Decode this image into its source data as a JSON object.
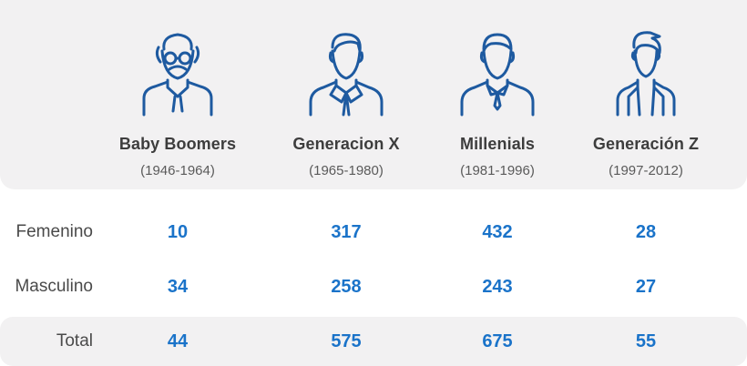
{
  "generations": [
    {
      "name": "Baby Boomers",
      "years": "(1946-1964)",
      "icon": "elderly-man-icon"
    },
    {
      "name": "Generacion X",
      "years": "(1965-1980)",
      "icon": "man-suit-tie-icon"
    },
    {
      "name": "Millenials",
      "years": "(1981-1996)",
      "icon": "man-collar-icon"
    },
    {
      "name": "Generación Z",
      "years": "(1997-2012)",
      "icon": "young-man-jacket-icon"
    }
  ],
  "rows": [
    {
      "label": "Femenino",
      "values": [
        "10",
        "317",
        "432",
        "28"
      ]
    },
    {
      "label": "Masculino",
      "values": [
        "34",
        "258",
        "243",
        "27"
      ]
    },
    {
      "label": "Total",
      "values": [
        "44",
        "575",
        "675",
        "55"
      ]
    }
  ],
  "colors": {
    "icon": "#1e5aa0",
    "value": "#1a73c9",
    "panel": "#f2f1f2",
    "label": "#4a4a4a"
  }
}
